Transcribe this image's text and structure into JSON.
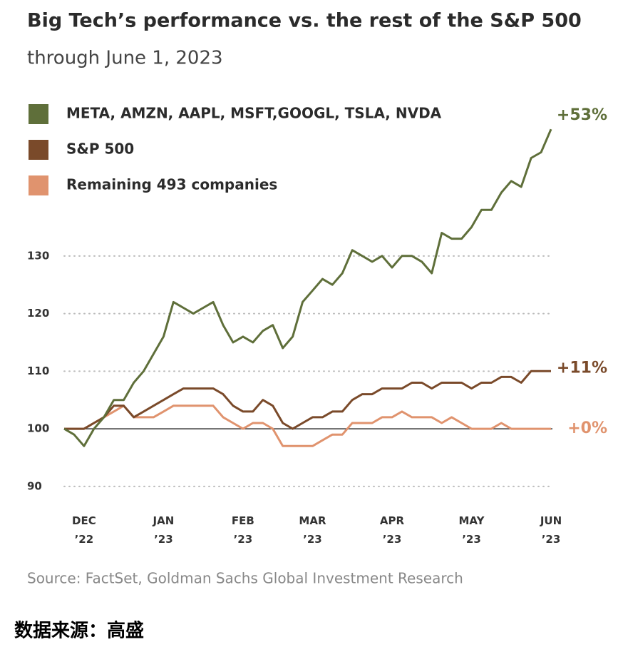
{
  "chart_data": {
    "type": "line",
    "title": "Big Tech’s performance vs. the rest of the S&P 500",
    "subtitle": "through June 1, 2023",
    "source": "Source: FactSet, Goldman Sachs Global Investment Research",
    "footer": "数据来源：高盛",
    "categories": [
      null,
      null,
      "DEC ’22",
      null,
      null,
      null,
      null,
      null,
      null,
      null,
      "JAN ’23",
      null,
      null,
      null,
      null,
      null,
      null,
      null,
      "FEB ’23",
      null,
      null,
      null,
      null,
      null,
      null,
      "MAR ’23",
      null,
      null,
      null,
      null,
      null,
      null,
      null,
      "APR ’23",
      null,
      null,
      null,
      null,
      null,
      null,
      null,
      "MAY ’23",
      null,
      null,
      null,
      null,
      null,
      null,
      null,
      "JUN ’23"
    ],
    "series": [
      {
        "name": "META, AMZN, AAPL, MSFT,GOOGL, TSLA, NVDA",
        "color": "#5f6f3a",
        "end_label": "+53%",
        "values": [
          100,
          99,
          97,
          100,
          102,
          105,
          105,
          108,
          110,
          113,
          116,
          122,
          121,
          120,
          121,
          122,
          118,
          115,
          116,
          115,
          117,
          118,
          114,
          116,
          122,
          124,
          126,
          125,
          127,
          131,
          130,
          129,
          130,
          128,
          130,
          130,
          129,
          127,
          134,
          133,
          133,
          135,
          138,
          138,
          141,
          143,
          142,
          147,
          148,
          152
        ]
      },
      {
        "name": "S&P 500",
        "color": "#7a4a2a",
        "end_label": "+11%",
        "values": [
          100,
          100,
          100,
          101,
          102,
          104,
          104,
          102,
          103,
          104,
          105,
          106,
          107,
          107,
          107,
          107,
          106,
          104,
          103,
          103,
          105,
          104,
          101,
          100,
          101,
          102,
          102,
          103,
          103,
          105,
          106,
          106,
          107,
          107,
          107,
          108,
          108,
          107,
          108,
          108,
          108,
          107,
          108,
          108,
          109,
          109,
          108,
          110,
          110,
          110
        ]
      },
      {
        "name": "Remaining 493 companies",
        "color": "#e0936e",
        "end_label": "+0%",
        "values": [
          100,
          100,
          100,
          101,
          102,
          103,
          104,
          102,
          102,
          102,
          103,
          104,
          104,
          104,
          104,
          104,
          102,
          101,
          100,
          101,
          101,
          100,
          97,
          97,
          97,
          97,
          98,
          99,
          99,
          101,
          101,
          101,
          102,
          102,
          103,
          102,
          102,
          102,
          101,
          102,
          101,
          100,
          100,
          100,
          101,
          100,
          100,
          100,
          100,
          100
        ]
      }
    ],
    "ylim": [
      88,
      154
    ],
    "yticks": [
      90,
      100,
      110,
      120,
      130
    ],
    "grid": true,
    "reference_line": 100
  }
}
